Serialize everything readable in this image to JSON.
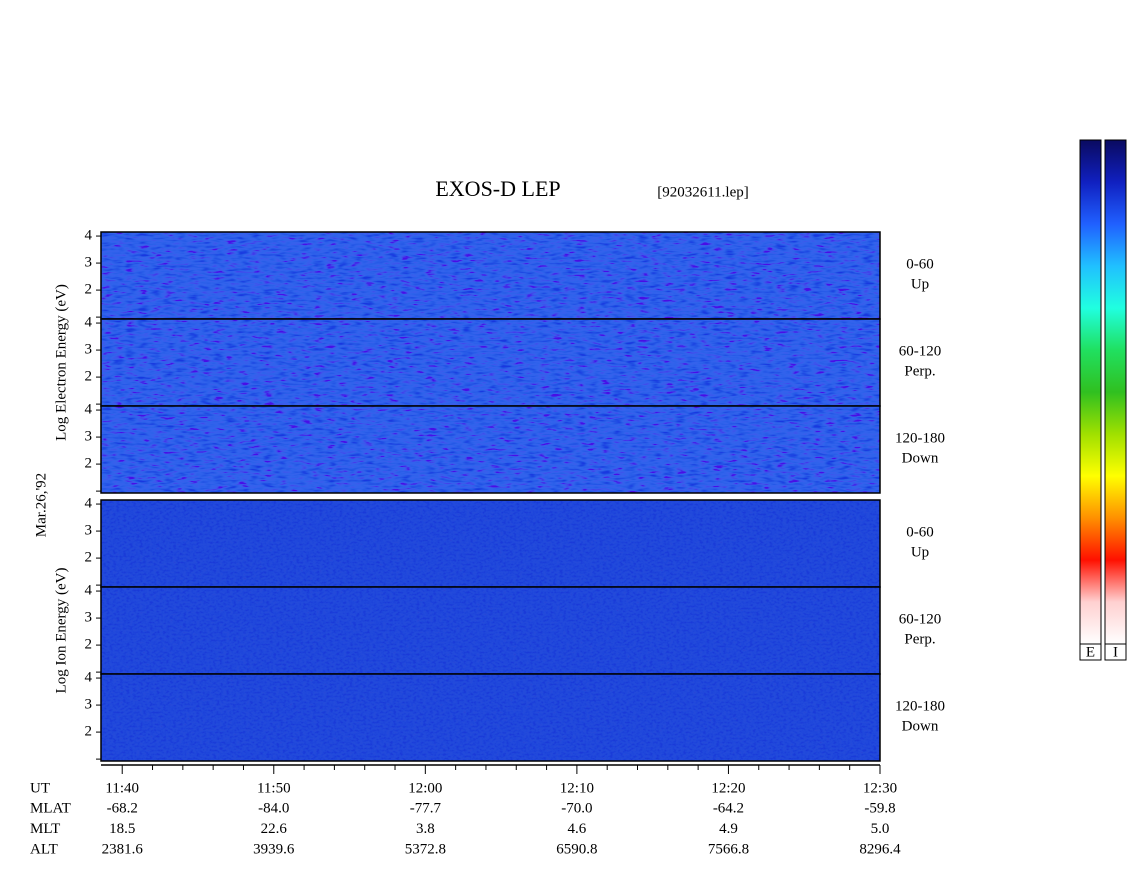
{
  "chart_data": {
    "type": "spectrogram",
    "title": "EXOS-D LEP",
    "subtitle": "[92032611.lep]",
    "date_label": "Mar.26,'92",
    "xlim": [
      698.6,
      750
    ],
    "xticks": [
      {
        "value": 700,
        "label": "11:40"
      },
      {
        "value": 710,
        "label": "11:50"
      },
      {
        "value": 720,
        "label": "12:00"
      },
      {
        "value": 730,
        "label": "12:10"
      },
      {
        "value": 740,
        "label": "12:20"
      },
      {
        "value": 750,
        "label": "12:30"
      }
    ],
    "minor_xticks": [
      702,
      704,
      706,
      708,
      712,
      714,
      716,
      718,
      722,
      724,
      726,
      728,
      732,
      734,
      736,
      738,
      742,
      744,
      746,
      748
    ],
    "ylim": [
      0.93,
      4.15
    ],
    "yticks": [
      2,
      3,
      4
    ],
    "unlabeled_yticks": [
      1
    ],
    "groups": [
      {
        "ylabel": "Log Electron Energy (eV)",
        "panels": [
          {
            "label": "0-60",
            "sublabel": "Up"
          },
          {
            "label": "60-120",
            "sublabel": "Perp."
          },
          {
            "label": "120-180",
            "sublabel": "Down"
          }
        ]
      },
      {
        "ylabel": "Log Ion Energy (eV)",
        "panels": [
          {
            "label": "0-60",
            "sublabel": "Up"
          },
          {
            "label": "60-120",
            "sublabel": "Perp."
          },
          {
            "label": "120-180",
            "sublabel": "Down"
          }
        ]
      }
    ],
    "orbit_table": {
      "xlabel": "UT",
      "rows": [
        {
          "name": "MLAT",
          "values": [
            "-68.2",
            "-84.0",
            "-77.7",
            "-70.0",
            "-64.2",
            "-59.8"
          ]
        },
        {
          "name": "MLT",
          "values": [
            "18.5",
            "22.6",
            "3.8",
            "4.6",
            "4.9",
            "5.0"
          ]
        },
        {
          "name": "ALT",
          "values": [
            "2381.6",
            "3939.6",
            "5372.8",
            "6590.8",
            "7566.8",
            "8296.4"
          ]
        }
      ]
    },
    "colorbars": {
      "labels": [
        "E",
        "I"
      ],
      "colors": [
        "#0a0a60",
        "#1020c0",
        "#2060ff",
        "#20c0ff",
        "#20ffe0",
        "#20e060",
        "#30c020",
        "#a0e000",
        "#ffff00",
        "#ff9000",
        "#ff1000",
        "#ffd0d0",
        "#ffffff"
      ]
    }
  }
}
